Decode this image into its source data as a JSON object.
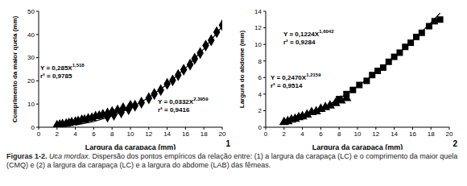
{
  "chart_data": [
    {
      "type": "scatter",
      "panel": "1",
      "xlabel": "Largura da carapaça (mm)",
      "ylabel": "Comprimento da maior quela (mm)",
      "xlim": [
        0,
        20
      ],
      "xticks": [
        0,
        2,
        4,
        6,
        8,
        10,
        12,
        14,
        16,
        18,
        20
      ],
      "ylim": [
        0,
        50
      ],
      "yticks": [
        0,
        10,
        20,
        30,
        40,
        50
      ],
      "grid": false,
      "series": [
        {
          "type": "scatter",
          "color": "#000000",
          "marker": "triangle",
          "x": [
            2.0,
            2.3,
            2.6,
            3.0,
            3.3,
            3.6,
            4.0,
            4.3,
            4.7,
            5.0,
            5.4,
            5.8,
            6.2,
            6.6,
            7.0,
            7.5,
            8.0,
            8.6,
            9.2,
            10.0
          ],
          "values": [
            0.8,
            1.0,
            1.3,
            1.5,
            1.7,
            2.1,
            2.3,
            2.6,
            3.1,
            3.2,
            3.7,
            4.0,
            4.7,
            4.9,
            5.5,
            6.1,
            6.7,
            7.4,
            8.3,
            9.4
          ]
        },
        {
          "type": "scatter",
          "color": "#000000",
          "marker": "diamond",
          "x": [
            7.5,
            8.2,
            9.0,
            9.8,
            10.5,
            11.2,
            12.0,
            12.6,
            13.3,
            14.0,
            14.6,
            15.2,
            15.8,
            16.5,
            17.0,
            17.6,
            18.2,
            18.8,
            19.4,
            20.0
          ],
          "values": [
            4.6,
            5.4,
            6.4,
            7.8,
            9.3,
            10.6,
            12.5,
            14.3,
            16.0,
            18.7,
            20.2,
            22.5,
            24.8,
            27.0,
            29.5,
            32.0,
            35.2,
            37.5,
            41.0,
            44.0
          ]
        },
        {
          "type": "line",
          "color": "#000000",
          "x": [
            4,
            6,
            8,
            10,
            12,
            14,
            16,
            18,
            20
          ],
          "values": [
            0.92,
            2.43,
            4.84,
            8.26,
            12.79,
            18.5,
            25.5,
            33.8,
            43.5
          ]
        }
      ],
      "annotations": [
        {
          "equation": "Y = 0,285X",
          "exponent": "1,518",
          "r2": "r² = 0,9785"
        },
        {
          "equation": "Y = 0,0332X",
          "exponent": "2,3959",
          "r2": "r² = 0,9416"
        }
      ]
    },
    {
      "type": "scatter",
      "panel": "2",
      "xlabel": "Largura da carapaça (mm)",
      "ylabel": "Largura do abdome (mm)",
      "xlim": [
        0,
        20
      ],
      "xticks": [
        0,
        2,
        4,
        6,
        8,
        10,
        12,
        14,
        16,
        18,
        20
      ],
      "ylim": [
        0,
        14
      ],
      "yticks": [
        0,
        2,
        4,
        6,
        8,
        10,
        12,
        14
      ],
      "grid": false,
      "series": [
        {
          "type": "scatter",
          "color": "#000000",
          "marker": "triangle",
          "x": [
            2.0,
            2.4,
            2.8,
            3.2,
            3.6,
            4.0,
            4.5,
            5.0,
            5.5,
            6.0,
            6.5,
            7.0,
            7.6,
            8.2,
            8.8
          ],
          "values": [
            0.6,
            0.7,
            0.9,
            1.0,
            1.2,
            1.3,
            1.5,
            1.8,
            1.9,
            2.2,
            2.4,
            2.6,
            2.9,
            3.2,
            3.5
          ]
        },
        {
          "type": "scatter",
          "color": "#000000",
          "marker": "square",
          "x": [
            8.0,
            8.8,
            9.5,
            10.2,
            11.0,
            11.6,
            12.2,
            12.8,
            13.4,
            14.0,
            14.6,
            15.2,
            15.8,
            16.4,
            17.0,
            17.8,
            18.4,
            19.0
          ],
          "values": [
            3.4,
            4.0,
            4.5,
            5.1,
            5.6,
            6.3,
            6.8,
            7.2,
            7.9,
            8.5,
            9.0,
            9.7,
            10.2,
            10.9,
            11.4,
            12.2,
            12.8,
            13.0
          ]
        },
        {
          "type": "line",
          "color": "#000000",
          "x": [
            2,
            4,
            6,
            8,
            10,
            12,
            14,
            16,
            18,
            19
          ],
          "values": [
            0.37,
            1.13,
            2.17,
            3.44,
            4.92,
            6.59,
            8.44,
            10.45,
            12.63,
            13.78
          ]
        }
      ],
      "annotations": [
        {
          "equation": "Y = 0,1224X",
          "exponent": "1,6042",
          "r2": "r² = 0,9284"
        },
        {
          "equation": "Y = 0,2470X",
          "exponent": "1,2159",
          "r2": "r² = 0,9514"
        }
      ]
    }
  ],
  "caption": {
    "label": "Figuras 1-2.",
    "species": "Uca mordax",
    "text": ". Dispersão dos pontos empíricos da relação entre: (1) a largura da carapaça (LC) e o comprimento da maior quela (CMQ) e (2) a largura da carapaça (LC) e a largura do abdome (LAB) das fêmeas."
  }
}
